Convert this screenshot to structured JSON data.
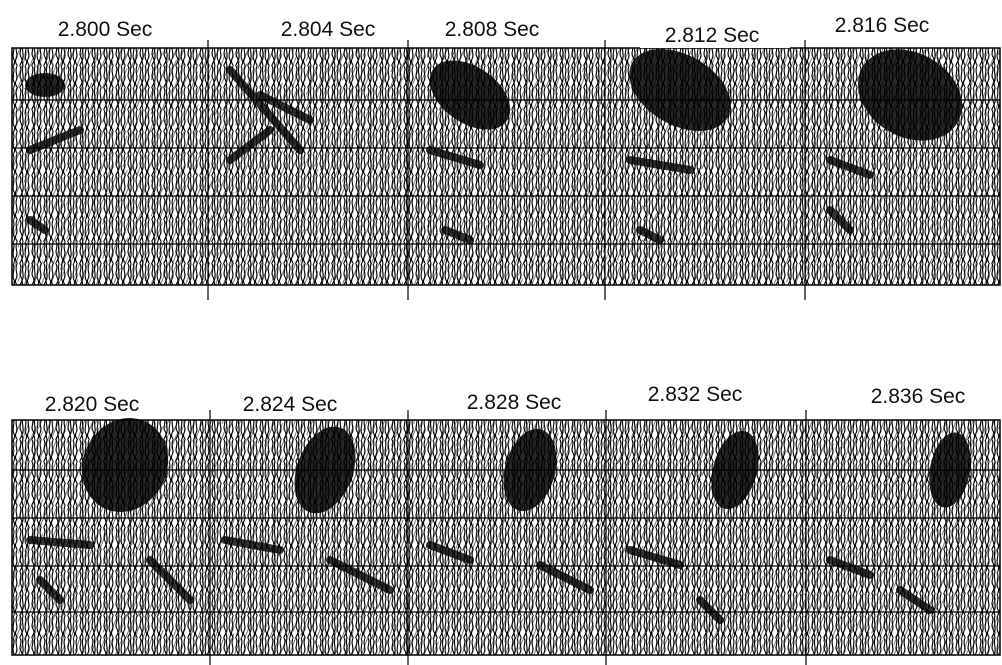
{
  "rows": [
    {
      "panels": [
        {
          "label": "2.800 Sec"
        },
        {
          "label": "2.804 Sec"
        },
        {
          "label": "2.808 Sec"
        },
        {
          "label": "2.812 Sec"
        },
        {
          "label": "2.816 Sec"
        }
      ]
    },
    {
      "panels": [
        {
          "label": "2.820 Sec"
        },
        {
          "label": "2.824 Sec"
        },
        {
          "label": "2.828 Sec"
        },
        {
          "label": "2.832 Sec"
        },
        {
          "label": "2.836 Sec"
        }
      ]
    }
  ]
}
